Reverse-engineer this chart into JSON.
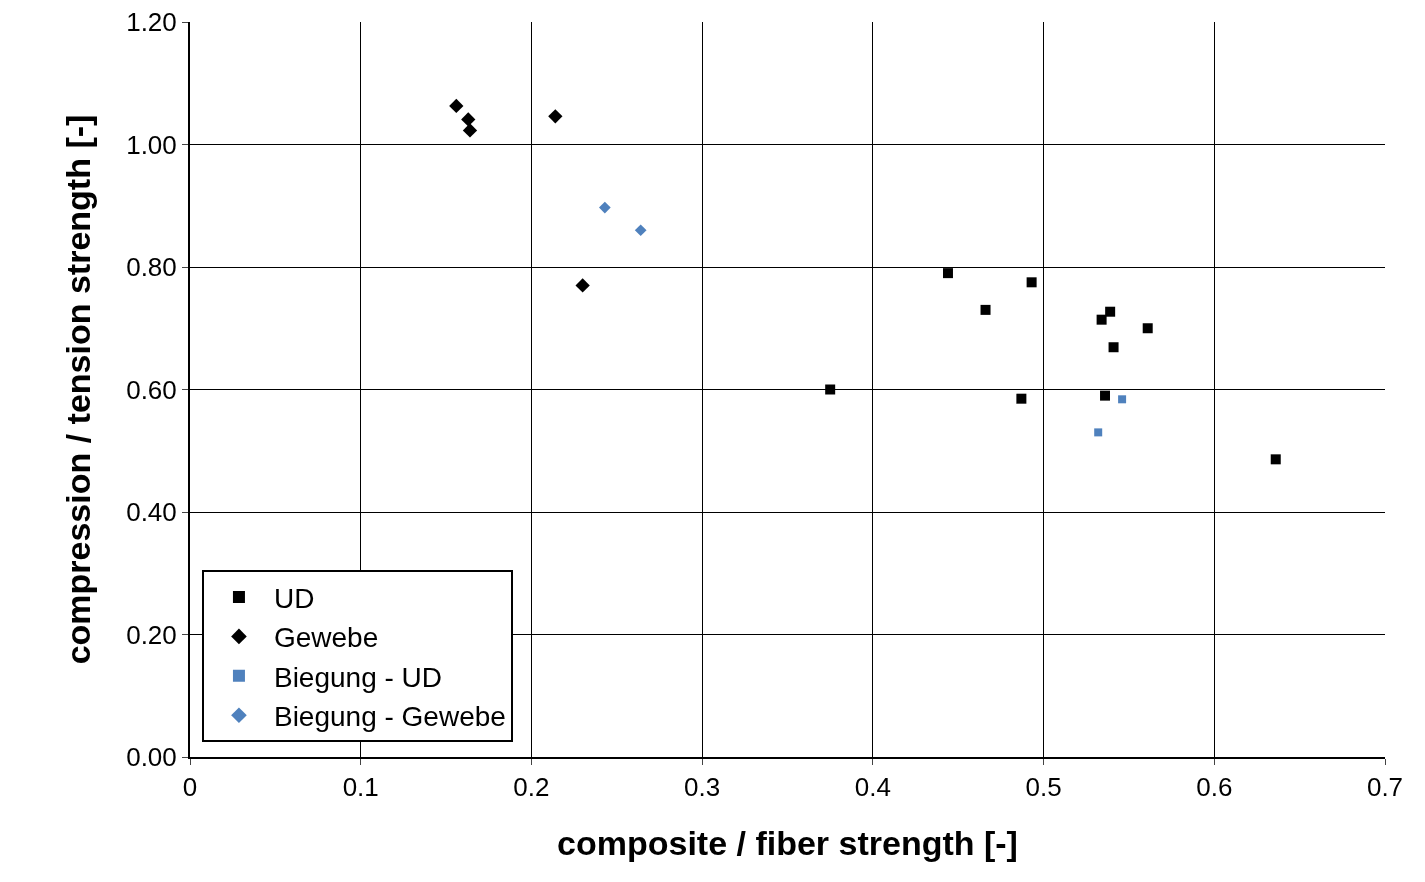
{
  "chart_data": {
    "type": "scatter",
    "xlabel": "composite / fiber strength [-]",
    "ylabel": "compression / tension strength [-]",
    "xlim": [
      0,
      0.7
    ],
    "xticks": [
      0,
      0.1,
      0.2,
      0.3,
      0.4,
      0.5,
      0.6,
      0.7
    ],
    "ylim": [
      0,
      1.2
    ],
    "yticks": [
      {
        "value": 0,
        "label": "0.00"
      },
      {
        "value": 0.2,
        "label": "0.20"
      },
      {
        "value": 0.4,
        "label": "0.40"
      },
      {
        "value": 0.6,
        "label": "0.60"
      },
      {
        "value": 0.8,
        "label": "0.80"
      },
      {
        "value": 1,
        "label": "1.00"
      },
      {
        "value": 1.2,
        "label": "1.20"
      }
    ],
    "grid": true,
    "legend": "bottom left",
    "series": [
      {
        "name": "UD",
        "color": "#000000",
        "marker": "square",
        "x": [
          0.375,
          0.444,
          0.466,
          0.493,
          0.487,
          0.534,
          0.539,
          0.541,
          0.536,
          0.561,
          0.636
        ],
        "values": [
          0.6,
          0.79,
          0.73,
          0.775,
          0.585,
          0.714,
          0.727,
          0.669,
          0.59,
          0.7,
          0.486
        ]
      },
      {
        "name": "Gewebe",
        "color": "#000000",
        "marker": "diamond",
        "x": [
          0.156,
          0.163,
          0.164,
          0.214,
          0.23
        ],
        "values": [
          1.063,
          1.041,
          1.023,
          1.046,
          0.77
        ]
      },
      {
        "name": "Biegung - UD",
        "color": "#4f81bd",
        "marker": "square",
        "x": [
          0.532,
          0.546
        ],
        "values": [
          0.53,
          0.584
        ]
      },
      {
        "name": "Biegung - Gewebe",
        "color": "#4f81bd",
        "marker": "diamond",
        "x": [
          0.243,
          0.264
        ],
        "values": [
          0.897,
          0.86
        ]
      }
    ]
  }
}
